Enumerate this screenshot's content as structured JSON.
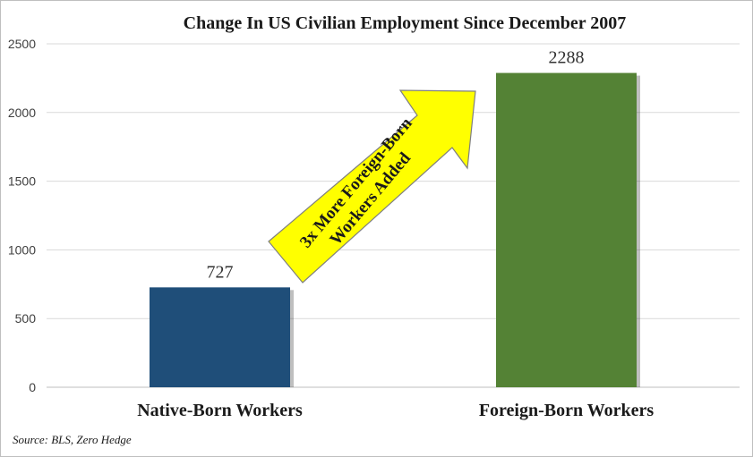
{
  "chart_data": {
    "type": "bar",
    "title": "Change In US Civilian Employment Since December 2007",
    "categories": [
      "Native-Born Workers",
      "Foreign-Born Workers"
    ],
    "values": [
      727,
      2288
    ],
    "data_labels": [
      "727",
      "2288"
    ],
    "colors": [
      "#1f4e79",
      "#548235"
    ],
    "ylim": [
      0,
      2500
    ],
    "yticks": [
      "0",
      "500",
      "1000",
      "1500",
      "2000",
      "2500"
    ],
    "grid": true,
    "annotation": {
      "lines": [
        "3x More Foreign-Born",
        "Workers Added"
      ],
      "fill": "#ffff00",
      "stroke": "#7f7f7f"
    },
    "source": "Source: BLS, Zero Hedge"
  }
}
